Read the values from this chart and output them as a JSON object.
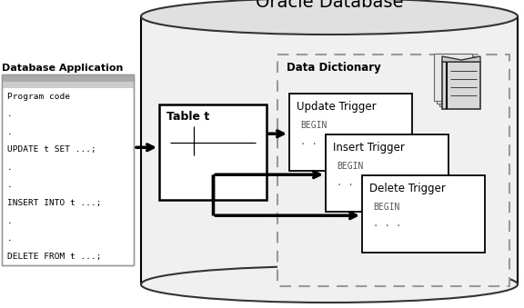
{
  "title": "Oracle Database",
  "db_app_label": "Database Application",
  "db_app_code": [
    "Program code",
    ".",
    ".",
    "UPDATE t SET ...;",
    ".",
    ".",
    "INSERT INTO t ...;",
    ".",
    ".",
    "DELETE FROM t ...;"
  ],
  "table_label": "Table t",
  "data_dict_label": "Data Dictionary",
  "triggers": [
    {
      "label": "Update Trigger"
    },
    {
      "label": "Insert Trigger"
    },
    {
      "label": "Delete Trigger"
    }
  ],
  "bg_color": "#ffffff",
  "cylinder_fc": "#f0f0f0",
  "cylinder_top_fc": "#e0e0e0",
  "cylinder_ec": "#333333",
  "arrow_color": "#000000"
}
